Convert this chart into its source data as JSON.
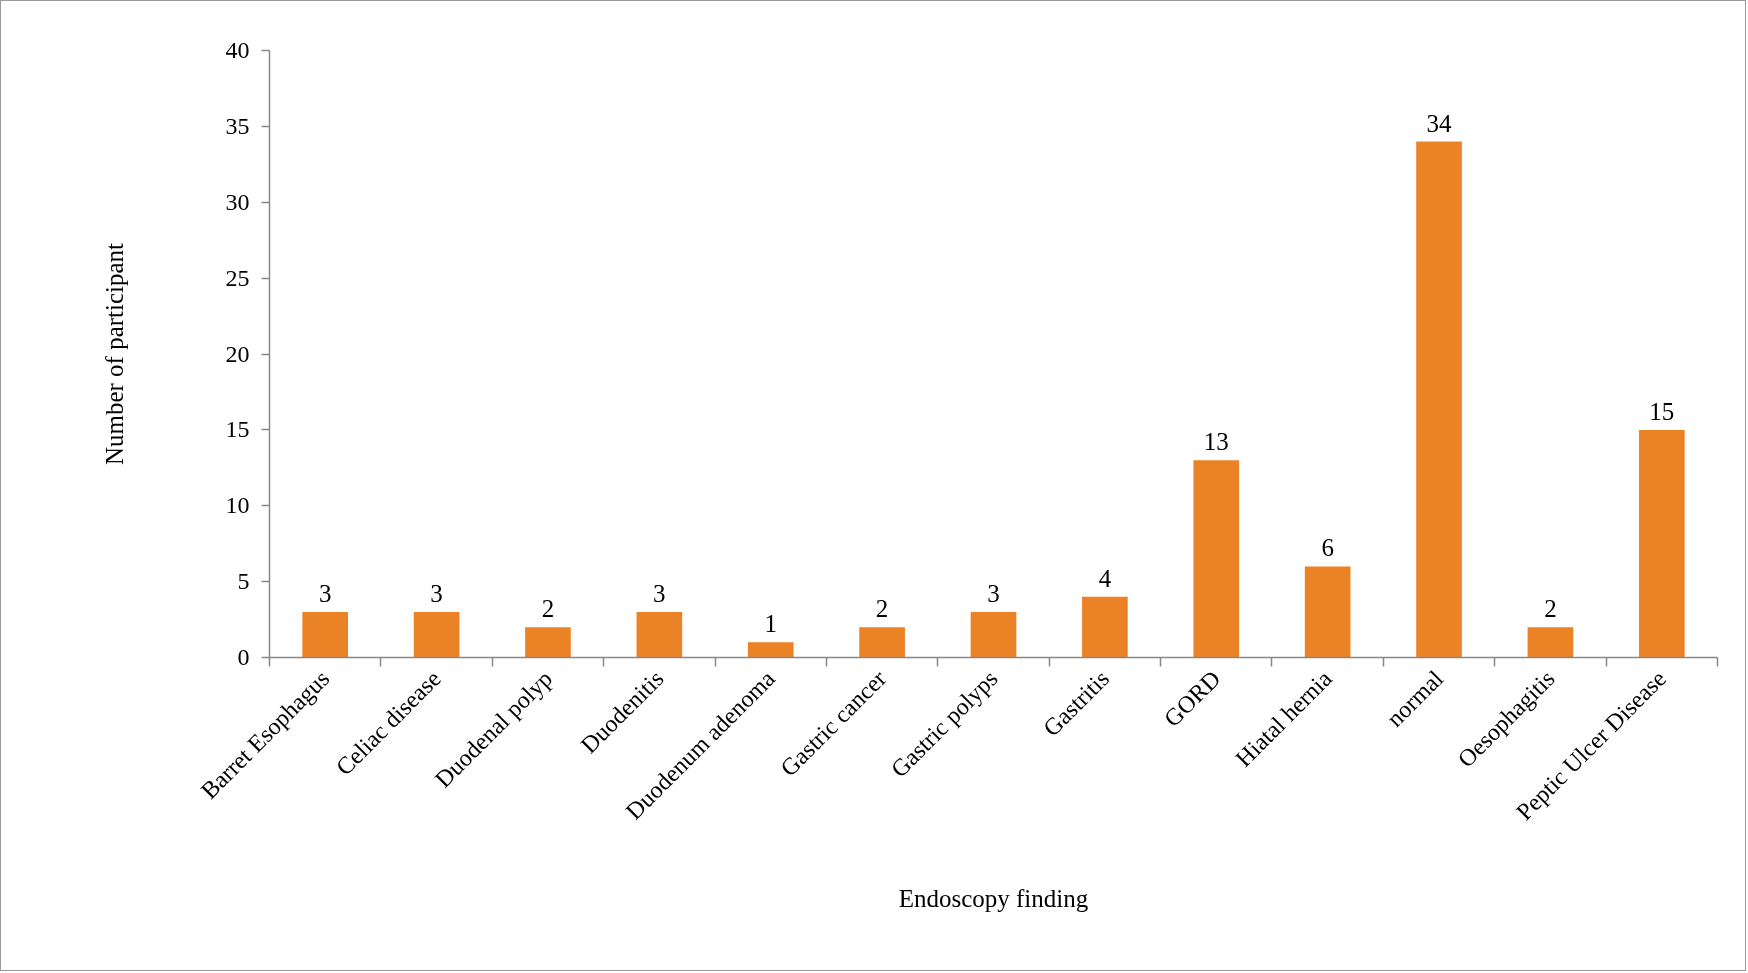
{
  "chart_data": {
    "type": "bar",
    "xlabel": "Endoscopy finding",
    "ylabel": "Number of participant",
    "categories": [
      "Barret Esophagus",
      "Celiac disease",
      "Duodenal polyp",
      "Duodenitis",
      "Duodenum adenoma",
      "Gastric cancer",
      "Gastric polyps",
      "Gastritis",
      "GORD",
      "Hiatal hernia",
      "normal",
      "Oesophagitis",
      "Peptic Ulcer Disease"
    ],
    "values": [
      3,
      3,
      2,
      3,
      1,
      2,
      3,
      4,
      13,
      6,
      34,
      2,
      15
    ],
    "color": "#ec8226",
    "ylim": [
      0,
      40
    ],
    "yticks": [
      0,
      5,
      10,
      15,
      20,
      25,
      30,
      35,
      40
    ],
    "data_labels": true
  }
}
